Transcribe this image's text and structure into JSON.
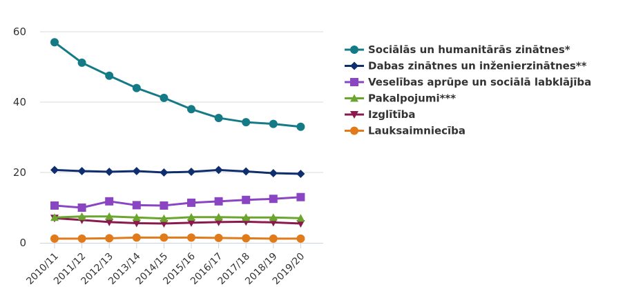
{
  "chart_data": {
    "type": "line",
    "title": "",
    "xlabel": "",
    "ylabel": "",
    "ylim": [
      0,
      60
    ],
    "yticks": [
      0,
      20,
      40,
      60
    ],
    "grid": true,
    "legend_position": "right",
    "categories": [
      "2010/11",
      "2011/12",
      "2012/13",
      "2013/14",
      "2014/15",
      "2015/16",
      "2016/17",
      "2017/18",
      "2018/19",
      "2019/20"
    ],
    "series": [
      {
        "name": "Sociālās un humanitārās zinātnes*",
        "color": "#147a86",
        "marker": "circle",
        "values": [
          57.0,
          51.2,
          47.5,
          44.0,
          41.2,
          38.0,
          35.5,
          34.3,
          33.8,
          33.0
        ]
      },
      {
        "name": "Dabas zinātnes un inženierzinātnes**",
        "color": "#0e2e6e",
        "marker": "diamond",
        "values": [
          20.7,
          20.4,
          20.2,
          20.4,
          20.0,
          20.2,
          20.7,
          20.3,
          19.8,
          19.6
        ]
      },
      {
        "name": "Veselības aprūpe un sociālā labklājība",
        "color": "#8a45c2",
        "marker": "square",
        "values": [
          10.6,
          10.0,
          11.8,
          10.7,
          10.6,
          11.4,
          11.8,
          12.2,
          12.5,
          13.0
        ]
      },
      {
        "name": "Pakalpojumi***",
        "color": "#6aa62e",
        "marker": "triangle",
        "values": [
          7.2,
          7.5,
          7.5,
          7.2,
          6.9,
          7.3,
          7.3,
          7.2,
          7.2,
          7.0
        ]
      },
      {
        "name": "Izglītība",
        "color": "#8a1a4e",
        "marker": "triangle-down",
        "values": [
          7.0,
          6.5,
          5.9,
          5.6,
          5.5,
          5.7,
          5.9,
          6.0,
          5.8,
          5.5
        ]
      },
      {
        "name": "Lauksaimniecība",
        "color": "#e07a1a",
        "marker": "circle",
        "values": [
          1.2,
          1.2,
          1.3,
          1.5,
          1.5,
          1.5,
          1.4,
          1.3,
          1.2,
          1.2
        ]
      }
    ]
  }
}
